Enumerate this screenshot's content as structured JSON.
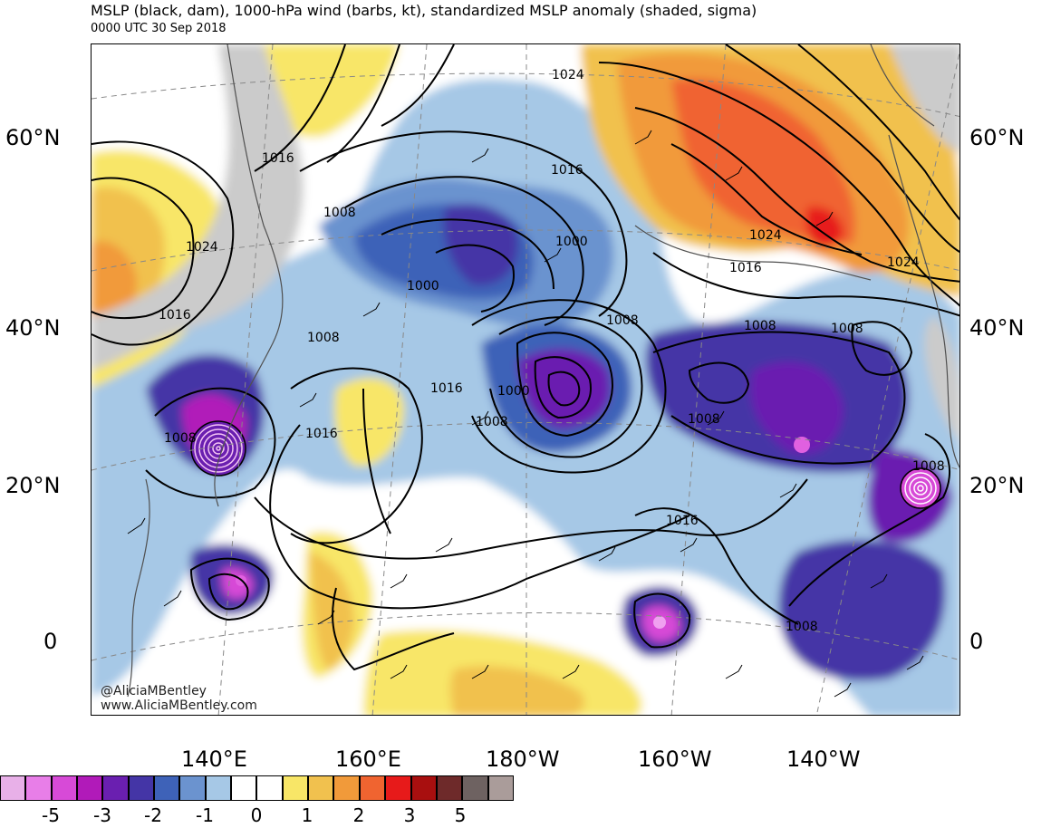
{
  "header": {
    "title": "MSLP (black, dam), 1000-hPa wind (barbs, kt), standardized MSLP anomaly (shaded, sigma)",
    "subtitle": "0000 UTC 30 Sep 2018"
  },
  "axes": {
    "lat_left": [
      "60°N",
      "40°N",
      "20°N",
      "0"
    ],
    "lat_right": [
      "60°N",
      "40°N",
      "20°N",
      "0"
    ],
    "lon": [
      "140°E",
      "160°E",
      "180°W",
      "160°W",
      "140°W"
    ]
  },
  "credit": {
    "handle": "@AliciaMBentley",
    "website": "www.AliciaMBentley.com"
  },
  "contour_labels": [
    "1024",
    "1016",
    "1008",
    "1024",
    "1000",
    "1016",
    "1000",
    "1008",
    "1024",
    "1016",
    "1024",
    "1016",
    "1008",
    "1008",
    "1008",
    "1016",
    "1000",
    "1008",
    "1016",
    "1008",
    "1008",
    "1008",
    "1016",
    "1008"
  ],
  "colorbar": {
    "colors": [
      "#e8b0e8",
      "#e87ee8",
      "#d74ad7",
      "#b11ab9",
      "#6a1fb0",
      "#4435a6",
      "#3e62b8",
      "#6b93cf",
      "#a6c8e6",
      "#ffffff",
      "#ffffff",
      "#f8e667",
      "#f1c14e",
      "#f19a3a",
      "#f06430",
      "#e71a1a",
      "#a80f0f",
      "#6e2a2a",
      "#6e6261",
      "#aa9c9a"
    ],
    "labels": [
      "-5",
      "-3",
      "-2",
      "-1",
      "0",
      "1",
      "2",
      "3",
      "5"
    ]
  },
  "colors": {
    "land_gray": "#cbcbcb",
    "coast": "#505050"
  }
}
